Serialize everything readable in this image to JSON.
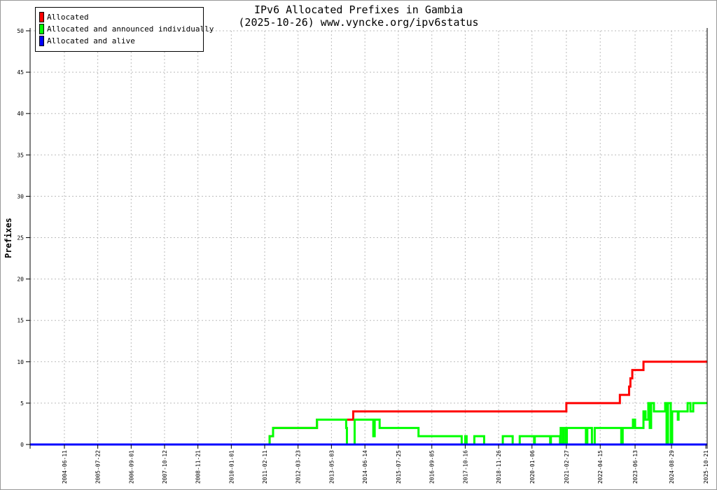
{
  "chart_data": {
    "type": "line",
    "step": true,
    "title": "IPv6 Allocated Prefixes in Gambia",
    "subtitle": "(2025-10-26) www.vyncke.org/ipv6status",
    "xlabel": "",
    "ylabel": "Prefixes",
    "xlim": [
      "2003-04-21",
      "2025-11-06"
    ],
    "ylim": [
      0,
      50
    ],
    "yticks": [
      0,
      5,
      10,
      15,
      20,
      25,
      30,
      35,
      40,
      45,
      50
    ],
    "xticks": [
      "2004-06-11",
      "2005-07-22",
      "2006-09-01",
      "2007-10-12",
      "2008-11-21",
      "2010-01-01",
      "2011-02-11",
      "2012-03-23",
      "2013-05-03",
      "2014-06-14",
      "2015-07-25",
      "2016-09-05",
      "2017-10-16",
      "2018-11-26",
      "2020-01-06",
      "2021-02-27",
      "2022-04-15",
      "2023-06-13",
      "2024-08-29",
      "2025-10-21"
    ],
    "grid": true,
    "legend_position": "top-left",
    "series": [
      {
        "name": "Allocated",
        "color": "#ff0000",
        "points": [
          [
            "2003-04-21",
            0
          ],
          [
            "2011-04-12",
            1
          ],
          [
            "2011-05-24",
            2
          ],
          [
            "2012-11-08",
            3
          ],
          [
            "2014-01-23",
            4
          ],
          [
            "2021-02-27",
            5
          ],
          [
            "2022-12-10",
            6
          ],
          [
            "2023-04-01",
            7
          ],
          [
            "2023-04-17",
            8
          ],
          [
            "2023-05-10",
            9
          ],
          [
            "2023-09-23",
            10
          ],
          [
            "2025-11-06",
            10
          ]
        ]
      },
      {
        "name": "Allocated and announced individually",
        "color": "#00ff00",
        "points": [
          [
            "2003-04-21",
            0
          ],
          [
            "2011-04-12",
            1
          ],
          [
            "2011-05-24",
            2
          ],
          [
            "2012-11-08",
            3
          ],
          [
            "2013-10-29",
            2
          ],
          [
            "2013-11-07",
            0
          ],
          [
            "2014-02-09",
            3
          ],
          [
            "2014-09-24",
            1
          ],
          [
            "2014-10-11",
            3
          ],
          [
            "2014-12-10",
            2
          ],
          [
            "2016-03-27",
            1
          ],
          [
            "2017-09-03",
            0
          ],
          [
            "2017-10-16",
            1
          ],
          [
            "2017-11-02",
            0
          ],
          [
            "2018-02-04",
            1
          ],
          [
            "2018-06-03",
            0
          ],
          [
            "2019-01-16",
            1
          ],
          [
            "2019-05-16",
            0
          ],
          [
            "2019-08-10",
            1
          ],
          [
            "2020-02-01",
            0
          ],
          [
            "2020-02-09",
            1
          ],
          [
            "2020-08-14",
            0
          ],
          [
            "2020-08-23",
            1
          ],
          [
            "2020-12-12",
            0
          ],
          [
            "2020-12-20",
            2
          ],
          [
            "2021-01-15",
            0
          ],
          [
            "2021-01-25",
            2
          ],
          [
            "2021-02-20",
            0
          ],
          [
            "2021-03-05",
            2
          ],
          [
            "2021-10-23",
            0
          ],
          [
            "2021-11-09",
            2
          ],
          [
            "2022-01-04",
            0
          ],
          [
            "2022-02-07",
            2
          ],
          [
            "2022-12-27",
            0
          ],
          [
            "2023-01-13",
            2
          ],
          [
            "2023-05-18",
            3
          ],
          [
            "2023-06-13",
            2
          ],
          [
            "2023-09-23",
            4
          ],
          [
            "2023-10-18",
            3
          ],
          [
            "2023-11-21",
            5
          ],
          [
            "2023-12-08",
            2
          ],
          [
            "2023-12-25",
            5
          ],
          [
            "2024-01-28",
            4
          ],
          [
            "2024-06-13",
            5
          ],
          [
            "2024-06-30",
            0
          ],
          [
            "2024-07-17",
            5
          ],
          [
            "2024-08-20",
            0
          ],
          [
            "2024-09-06",
            4
          ],
          [
            "2024-11-14",
            3
          ],
          [
            "2024-11-23",
            4
          ],
          [
            "2025-03-13",
            5
          ],
          [
            "2025-04-16",
            4
          ],
          [
            "2025-05-20",
            5
          ],
          [
            "2025-11-06",
            5
          ]
        ]
      },
      {
        "name": "Allocated and alive",
        "color": "#0000ff",
        "points": [
          [
            "2003-04-21",
            0
          ],
          [
            "2025-11-06",
            0
          ]
        ]
      }
    ]
  }
}
